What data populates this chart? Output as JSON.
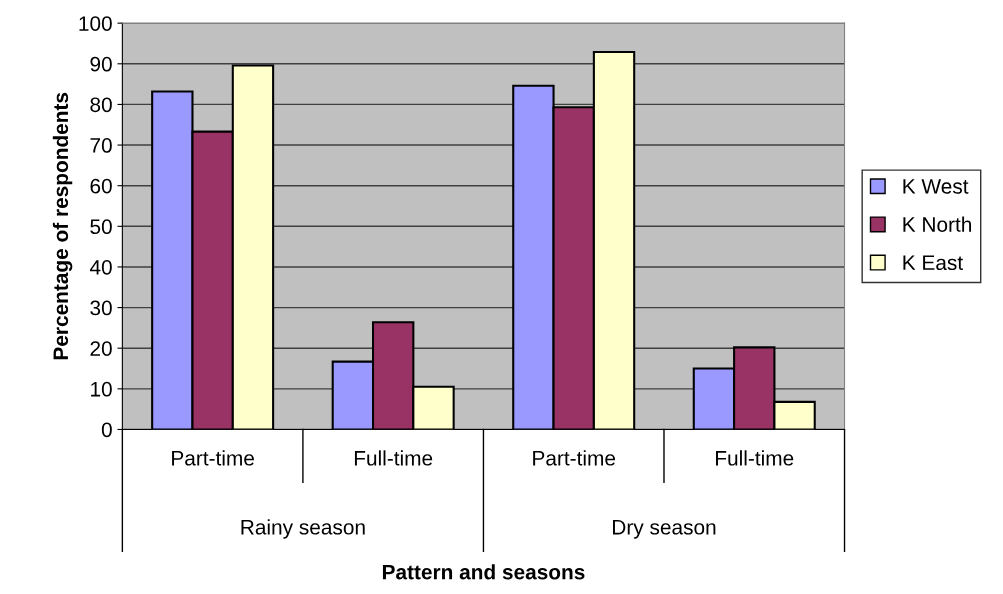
{
  "chart_data": {
    "type": "bar",
    "xlabel": "Pattern and seasons",
    "ylabel": "Percentage of respondents",
    "categories": [
      "Part-time",
      "Full-time",
      "Part-time",
      "Full-time"
    ],
    "series": [
      {
        "name": "K West",
        "color": "#9999ff",
        "values": [
          83.2,
          16.7,
          84.6,
          15.0
        ]
      },
      {
        "name": "K North",
        "color": "#993366",
        "values": [
          73.3,
          26.4,
          79.3,
          20.2
        ]
      },
      {
        "name": "K East",
        "color": "#ffffcc",
        "values": [
          89.6,
          10.5,
          92.9,
          6.8
        ]
      }
    ],
    "annotations": [
      "Rainy season",
      "Dry season"
    ],
    "ylim": [
      0,
      100
    ],
    "yticks": [
      0,
      10,
      20,
      30,
      40,
      50,
      60,
      70,
      80,
      90,
      100
    ],
    "grid": "y",
    "legend": "right"
  }
}
